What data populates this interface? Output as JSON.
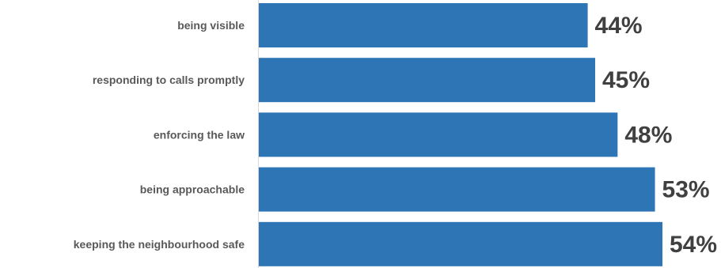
{
  "chart_data": {
    "type": "bar",
    "orientation": "horizontal",
    "categories": [
      "being visible",
      "responding to calls promptly",
      "enforcing the law",
      "being approachable",
      "keeping the neighbourhood safe"
    ],
    "values": [
      44,
      45,
      48,
      53,
      54
    ],
    "value_labels": [
      "44%",
      "45%",
      "48%",
      "53%",
      "54%"
    ],
    "value_unit": "%",
    "title": "",
    "xlabel": "",
    "ylabel": "",
    "xlim": [
      0,
      54
    ],
    "grid": false,
    "legend": "none",
    "bar_color": "#2e75b6",
    "axis_color": "#d9d9d9"
  }
}
